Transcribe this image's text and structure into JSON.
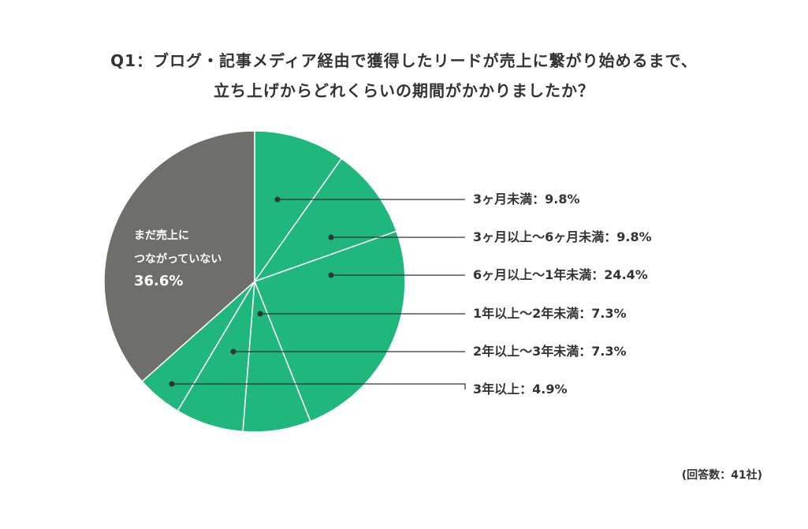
{
  "chart_data": {
    "type": "pie",
    "title": "Q1：ブログ・記事メディア経由で獲得したリードが売上に繋がり始めるまで、\n立ち上げからどれくらいの期間がかかりましたか？",
    "categories": [
      "3ヶ月未満",
      "3ヶ月以上〜6ヶ月未満",
      "6ヶ月以上〜1年未満",
      "1年以上〜2年未満",
      "2年以上〜3年未満",
      "3年以上",
      "まだ売上に\nつながっていない"
    ],
    "values": [
      9.8,
      9.8,
      24.4,
      7.3,
      7.3,
      4.9,
      36.6
    ],
    "value_labels": [
      "9.8%",
      "9.8%",
      "24.4%",
      "7.3%",
      "7.3%",
      "4.9%",
      "36.6%"
    ],
    "label_separator": "：",
    "colors": [
      "#1fb77c",
      "#1fb77c",
      "#1fb77c",
      "#1fb77c",
      "#1fb77c",
      "#1fb77c",
      "#6e6f6b"
    ],
    "note": "(回答数：41社)"
  }
}
